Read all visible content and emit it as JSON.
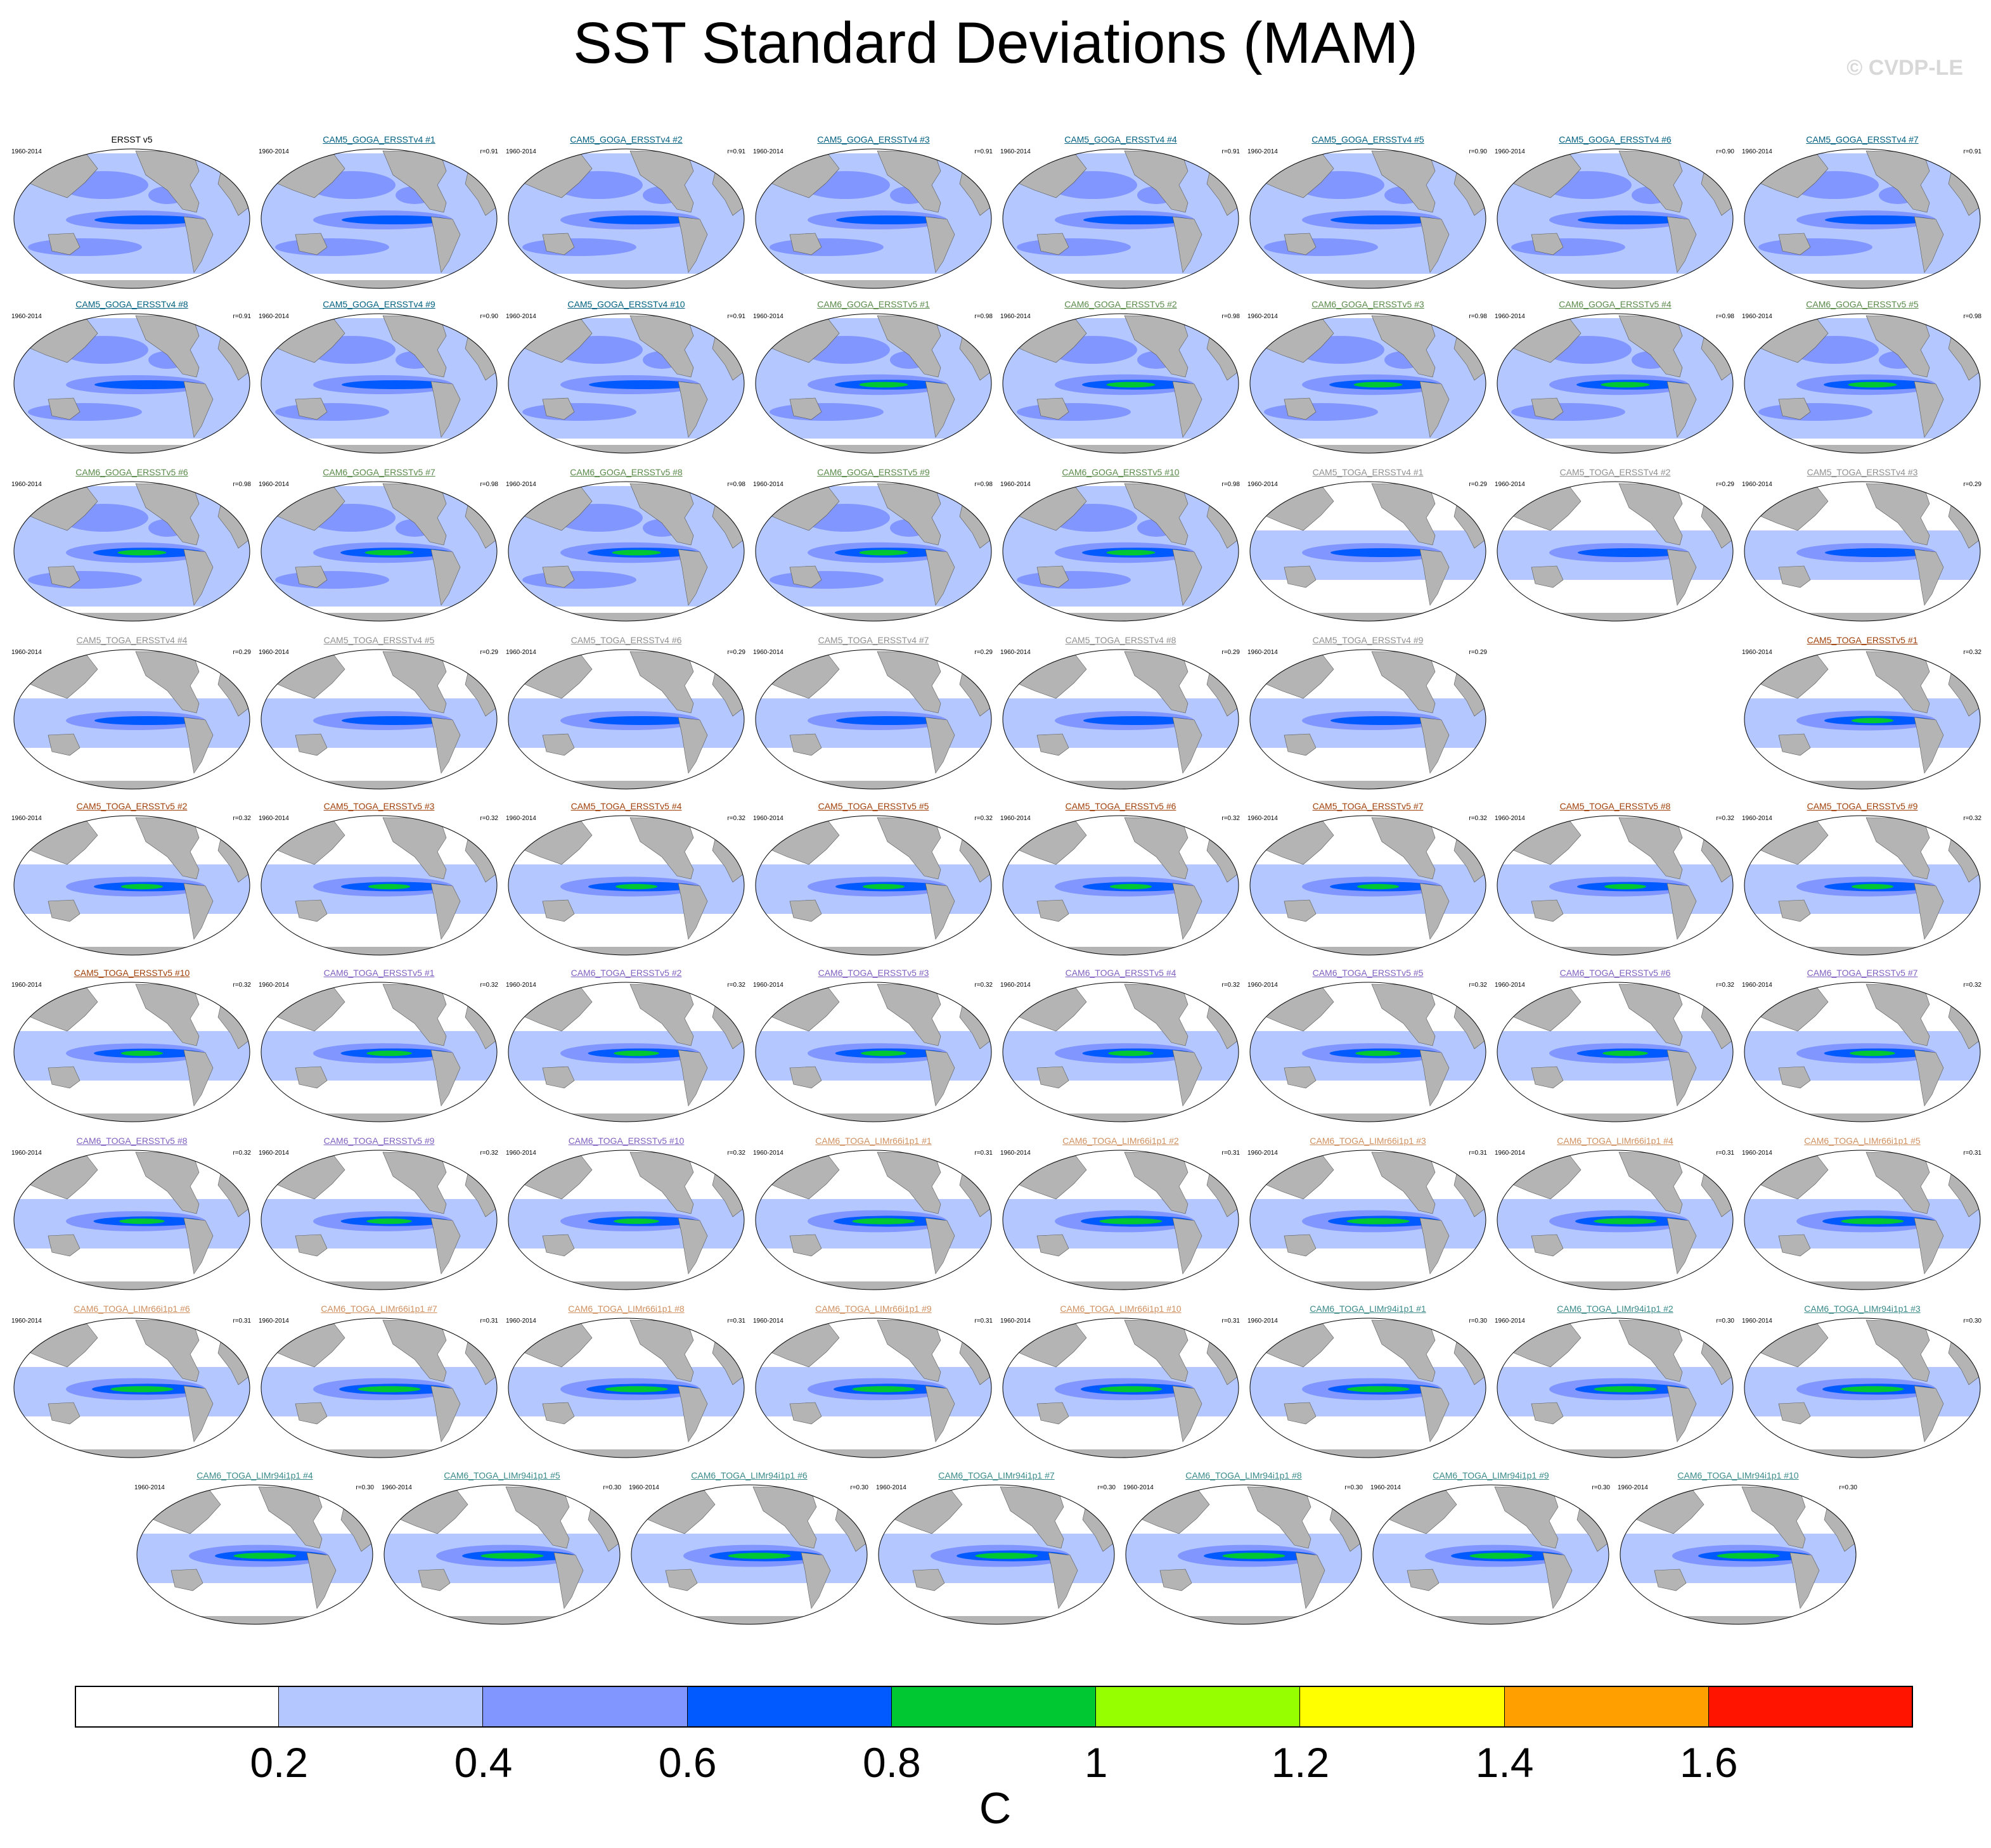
{
  "header": {
    "title": "SST Standard Deviations (MAM)",
    "watermark": "© CVDP-LE"
  },
  "colors": {
    "series": {
      "ERSST v5": "#000000",
      "CAM5_GOGA_ERSSTv4": "#006080",
      "CAM6_GOGA_ERSSTv5": "#5a8a4a",
      "CAM5_TOGA_ERSSTv4": "#909090",
      "CAM5_TOGA_ERSSTv5": "#a0400a",
      "CAM6_TOGA_ERSSTv5": "#8060c0",
      "CAM6_TOGA_LIMr66i1p1": "#d09060",
      "CAM6_TOGA_LIMr94i1p1": "#3a8a8a"
    },
    "land": "#b4b4b4",
    "ocean_masked": "#ffffff"
  },
  "chart_data": {
    "type": "heatmap",
    "title": "SST Standard Deviations (MAM)",
    "colorbar": {
      "label": "C",
      "levels": [
        0.2,
        0.4,
        0.6,
        0.8,
        1,
        1.2,
        1.4,
        1.6
      ],
      "tick_labels": [
        "0.2",
        "0.4",
        "0.6",
        "0.8",
        "1",
        "1.2",
        "1.4",
        "1.6"
      ],
      "colors": [
        "#ffffff",
        "#b4c8ff",
        "#8296ff",
        "#005aff",
        "#00c832",
        "#96ff00",
        "#ffff00",
        "#ffa000",
        "#ff1400"
      ]
    },
    "panels": [
      {
        "title": "ERSST v5",
        "series": "ERSST v5",
        "period": "1960-2014",
        "r": "",
        "domain": "global",
        "intensity": 0.5
      },
      {
        "title": "CAM5_GOGA_ERSSTv4 #1",
        "series": "CAM5_GOGA_ERSSTv4",
        "period": "1960-2014",
        "r": "r=0.91",
        "domain": "global",
        "intensity": 0.5
      },
      {
        "title": "CAM5_GOGA_ERSSTv4 #2",
        "series": "CAM5_GOGA_ERSSTv4",
        "period": "1960-2014",
        "r": "r=0.91",
        "domain": "global",
        "intensity": 0.5
      },
      {
        "title": "CAM5_GOGA_ERSSTv4 #3",
        "series": "CAM5_GOGA_ERSSTv4",
        "period": "1960-2014",
        "r": "r=0.91",
        "domain": "global",
        "intensity": 0.5
      },
      {
        "title": "CAM5_GOGA_ERSSTv4 #4",
        "series": "CAM5_GOGA_ERSSTv4",
        "period": "1960-2014",
        "r": "r=0.91",
        "domain": "global",
        "intensity": 0.5
      },
      {
        "title": "CAM5_GOGA_ERSSTv4 #5",
        "series": "CAM5_GOGA_ERSSTv4",
        "period": "1960-2014",
        "r": "r=0.90",
        "domain": "global",
        "intensity": 0.5
      },
      {
        "title": "CAM5_GOGA_ERSSTv4 #6",
        "series": "CAM5_GOGA_ERSSTv4",
        "period": "1960-2014",
        "r": "r=0.90",
        "domain": "global",
        "intensity": 0.5
      },
      {
        "title": "CAM5_GOGA_ERSSTv4 #7",
        "series": "CAM5_GOGA_ERSSTv4",
        "period": "1960-2014",
        "r": "r=0.91",
        "domain": "global",
        "intensity": 0.5
      },
      {
        "title": "CAM5_GOGA_ERSSTv4 #8",
        "series": "CAM5_GOGA_ERSSTv4",
        "period": "1960-2014",
        "r": "r=0.91",
        "domain": "global",
        "intensity": 0.5
      },
      {
        "title": "CAM5_GOGA_ERSSTv4 #9",
        "series": "CAM5_GOGA_ERSSTv4",
        "period": "1960-2014",
        "r": "r=0.90",
        "domain": "global",
        "intensity": 0.5
      },
      {
        "title": "CAM5_GOGA_ERSSTv4 #10",
        "series": "CAM5_GOGA_ERSSTv4",
        "period": "1960-2014",
        "r": "r=0.91",
        "domain": "global",
        "intensity": 0.5
      },
      {
        "title": "CAM6_GOGA_ERSSTv5 #1",
        "series": "CAM6_GOGA_ERSSTv5",
        "period": "1960-2014",
        "r": "r=0.98",
        "domain": "global",
        "intensity": 0.7
      },
      {
        "title": "CAM6_GOGA_ERSSTv5 #2",
        "series": "CAM6_GOGA_ERSSTv5",
        "period": "1960-2014",
        "r": "r=0.98",
        "domain": "global",
        "intensity": 0.7
      },
      {
        "title": "CAM6_GOGA_ERSSTv5 #3",
        "series": "CAM6_GOGA_ERSSTv5",
        "period": "1960-2014",
        "r": "r=0.98",
        "domain": "global",
        "intensity": 0.7
      },
      {
        "title": "CAM6_GOGA_ERSSTv5 #4",
        "series": "CAM6_GOGA_ERSSTv5",
        "period": "1960-2014",
        "r": "r=0.98",
        "domain": "global",
        "intensity": 0.7
      },
      {
        "title": "CAM6_GOGA_ERSSTv5 #5",
        "series": "CAM6_GOGA_ERSSTv5",
        "period": "1960-2014",
        "r": "r=0.98",
        "domain": "global",
        "intensity": 0.7
      },
      {
        "title": "CAM6_GOGA_ERSSTv5 #6",
        "series": "CAM6_GOGA_ERSSTv5",
        "period": "1960-2014",
        "r": "r=0.98",
        "domain": "global",
        "intensity": 0.7
      },
      {
        "title": "CAM6_GOGA_ERSSTv5 #7",
        "series": "CAM6_GOGA_ERSSTv5",
        "period": "1960-2014",
        "r": "r=0.98",
        "domain": "global",
        "intensity": 0.7
      },
      {
        "title": "CAM6_GOGA_ERSSTv5 #8",
        "series": "CAM6_GOGA_ERSSTv5",
        "period": "1960-2014",
        "r": "r=0.98",
        "domain": "global",
        "intensity": 0.7
      },
      {
        "title": "CAM6_GOGA_ERSSTv5 #9",
        "series": "CAM6_GOGA_ERSSTv5",
        "period": "1960-2014",
        "r": "r=0.98",
        "domain": "global",
        "intensity": 0.7
      },
      {
        "title": "CAM6_GOGA_ERSSTv5 #10",
        "series": "CAM6_GOGA_ERSSTv5",
        "period": "1960-2014",
        "r": "r=0.98",
        "domain": "global",
        "intensity": 0.7
      },
      {
        "title": "CAM5_TOGA_ERSSTv4 #1",
        "series": "CAM5_TOGA_ERSSTv4",
        "period": "1960-2014",
        "r": "r=0.29",
        "domain": "tropics",
        "intensity": 0.5
      },
      {
        "title": "CAM5_TOGA_ERSSTv4 #2",
        "series": "CAM5_TOGA_ERSSTv4",
        "period": "1960-2014",
        "r": "r=0.29",
        "domain": "tropics",
        "intensity": 0.5
      },
      {
        "title": "CAM5_TOGA_ERSSTv4 #3",
        "series": "CAM5_TOGA_ERSSTv4",
        "period": "1960-2014",
        "r": "r=0.29",
        "domain": "tropics",
        "intensity": 0.5
      },
      {
        "title": "CAM5_TOGA_ERSSTv4 #4",
        "series": "CAM5_TOGA_ERSSTv4",
        "period": "1960-2014",
        "r": "r=0.29",
        "domain": "tropics",
        "intensity": 0.5
      },
      {
        "title": "CAM5_TOGA_ERSSTv4 #5",
        "series": "CAM5_TOGA_ERSSTv4",
        "period": "1960-2014",
        "r": "r=0.29",
        "domain": "tropics",
        "intensity": 0.5
      },
      {
        "title": "CAM5_TOGA_ERSSTv4 #6",
        "series": "CAM5_TOGA_ERSSTv4",
        "period": "1960-2014",
        "r": "r=0.29",
        "domain": "tropics",
        "intensity": 0.5
      },
      {
        "title": "CAM5_TOGA_ERSSTv4 #7",
        "series": "CAM5_TOGA_ERSSTv4",
        "period": "1960-2014",
        "r": "r=0.29",
        "domain": "tropics",
        "intensity": 0.5
      },
      {
        "title": "CAM5_TOGA_ERSSTv4 #8",
        "series": "CAM5_TOGA_ERSSTv4",
        "period": "1960-2014",
        "r": "r=0.29",
        "domain": "tropics",
        "intensity": 0.5
      },
      {
        "title": "CAM5_TOGA_ERSSTv4 #9",
        "series": "CAM5_TOGA_ERSSTv4",
        "period": "1960-2014",
        "r": "r=0.29",
        "domain": "tropics",
        "intensity": 0.5
      },
      {
        "title": "CAM5_TOGA_ERSSTv5 #1",
        "series": "CAM5_TOGA_ERSSTv5",
        "period": "1960-2014",
        "r": "r=0.32",
        "domain": "tropics",
        "intensity": 0.6
      },
      {
        "title": "CAM5_TOGA_ERSSTv5 #2",
        "series": "CAM5_TOGA_ERSSTv5",
        "period": "1960-2014",
        "r": "r=0.32",
        "domain": "tropics",
        "intensity": 0.6
      },
      {
        "title": "CAM5_TOGA_ERSSTv5 #3",
        "series": "CAM5_TOGA_ERSSTv5",
        "period": "1960-2014",
        "r": "r=0.32",
        "domain": "tropics",
        "intensity": 0.6
      },
      {
        "title": "CAM5_TOGA_ERSSTv5 #4",
        "series": "CAM5_TOGA_ERSSTv5",
        "period": "1960-2014",
        "r": "r=0.32",
        "domain": "tropics",
        "intensity": 0.6
      },
      {
        "title": "CAM5_TOGA_ERSSTv5 #5",
        "series": "CAM5_TOGA_ERSSTv5",
        "period": "1960-2014",
        "r": "r=0.32",
        "domain": "tropics",
        "intensity": 0.6
      },
      {
        "title": "CAM5_TOGA_ERSSTv5 #6",
        "series": "CAM5_TOGA_ERSSTv5",
        "period": "1960-2014",
        "r": "r=0.32",
        "domain": "tropics",
        "intensity": 0.6
      },
      {
        "title": "CAM5_TOGA_ERSSTv5 #7",
        "series": "CAM5_TOGA_ERSSTv5",
        "period": "1960-2014",
        "r": "r=0.32",
        "domain": "tropics",
        "intensity": 0.6
      },
      {
        "title": "CAM5_TOGA_ERSSTv5 #8",
        "series": "CAM5_TOGA_ERSSTv5",
        "period": "1960-2014",
        "r": "r=0.32",
        "domain": "tropics",
        "intensity": 0.6
      },
      {
        "title": "CAM5_TOGA_ERSSTv5 #9",
        "series": "CAM5_TOGA_ERSSTv5",
        "period": "1960-2014",
        "r": "r=0.32",
        "domain": "tropics",
        "intensity": 0.6
      },
      {
        "title": "CAM5_TOGA_ERSSTv5 #10",
        "series": "CAM5_TOGA_ERSSTv5",
        "period": "1960-2014",
        "r": "r=0.32",
        "domain": "tropics",
        "intensity": 0.6
      },
      {
        "title": "CAM6_TOGA_ERSSTv5 #1",
        "series": "CAM6_TOGA_ERSSTv5",
        "period": "1960-2014",
        "r": "r=0.32",
        "domain": "tropics",
        "intensity": 0.65
      },
      {
        "title": "CAM6_TOGA_ERSSTv5 #2",
        "series": "CAM6_TOGA_ERSSTv5",
        "period": "1960-2014",
        "r": "r=0.32",
        "domain": "tropics",
        "intensity": 0.65
      },
      {
        "title": "CAM6_TOGA_ERSSTv5 #3",
        "series": "CAM6_TOGA_ERSSTv5",
        "period": "1960-2014",
        "r": "r=0.32",
        "domain": "tropics",
        "intensity": 0.65
      },
      {
        "title": "CAM6_TOGA_ERSSTv5 #4",
        "series": "CAM6_TOGA_ERSSTv5",
        "period": "1960-2014",
        "r": "r=0.32",
        "domain": "tropics",
        "intensity": 0.65
      },
      {
        "title": "CAM6_TOGA_ERSSTv5 #5",
        "series": "CAM6_TOGA_ERSSTv5",
        "period": "1960-2014",
        "r": "r=0.32",
        "domain": "tropics",
        "intensity": 0.65
      },
      {
        "title": "CAM6_TOGA_ERSSTv5 #6",
        "series": "CAM6_TOGA_ERSSTv5",
        "period": "1960-2014",
        "r": "r=0.32",
        "domain": "tropics",
        "intensity": 0.65
      },
      {
        "title": "CAM6_TOGA_ERSSTv5 #7",
        "series": "CAM6_TOGA_ERSSTv5",
        "period": "1960-2014",
        "r": "r=0.32",
        "domain": "tropics",
        "intensity": 0.65
      },
      {
        "title": "CAM6_TOGA_ERSSTv5 #8",
        "series": "CAM6_TOGA_ERSSTv5",
        "period": "1960-2014",
        "r": "r=0.32",
        "domain": "tropics",
        "intensity": 0.65
      },
      {
        "title": "CAM6_TOGA_ERSSTv5 #9",
        "series": "CAM6_TOGA_ERSSTv5",
        "period": "1960-2014",
        "r": "r=0.32",
        "domain": "tropics",
        "intensity": 0.65
      },
      {
        "title": "CAM6_TOGA_ERSSTv5 #10",
        "series": "CAM6_TOGA_ERSSTv5",
        "period": "1960-2014",
        "r": "r=0.32",
        "domain": "tropics",
        "intensity": 0.65
      },
      {
        "title": "CAM6_TOGA_LIMr66i1p1 #1",
        "series": "CAM6_TOGA_LIMr66i1p1",
        "period": "1960-2014",
        "r": "r=0.31",
        "domain": "tropics",
        "intensity": 0.9
      },
      {
        "title": "CAM6_TOGA_LIMr66i1p1 #2",
        "series": "CAM6_TOGA_LIMr66i1p1",
        "period": "1960-2014",
        "r": "r=0.31",
        "domain": "tropics",
        "intensity": 0.9
      },
      {
        "title": "CAM6_TOGA_LIMr66i1p1 #3",
        "series": "CAM6_TOGA_LIMr66i1p1",
        "period": "1960-2014",
        "r": "r=0.31",
        "domain": "tropics",
        "intensity": 0.9
      },
      {
        "title": "CAM6_TOGA_LIMr66i1p1 #4",
        "series": "CAM6_TOGA_LIMr66i1p1",
        "period": "1960-2014",
        "r": "r=0.31",
        "domain": "tropics",
        "intensity": 0.9
      },
      {
        "title": "CAM6_TOGA_LIMr66i1p1 #5",
        "series": "CAM6_TOGA_LIMr66i1p1",
        "period": "1960-2014",
        "r": "r=0.31",
        "domain": "tropics",
        "intensity": 0.9
      },
      {
        "title": "CAM6_TOGA_LIMr66i1p1 #6",
        "series": "CAM6_TOGA_LIMr66i1p1",
        "period": "1960-2014",
        "r": "r=0.31",
        "domain": "tropics",
        "intensity": 0.9
      },
      {
        "title": "CAM6_TOGA_LIMr66i1p1 #7",
        "series": "CAM6_TOGA_LIMr66i1p1",
        "period": "1960-2014",
        "r": "r=0.31",
        "domain": "tropics",
        "intensity": 0.9
      },
      {
        "title": "CAM6_TOGA_LIMr66i1p1 #8",
        "series": "CAM6_TOGA_LIMr66i1p1",
        "period": "1960-2014",
        "r": "r=0.31",
        "domain": "tropics",
        "intensity": 0.9
      },
      {
        "title": "CAM6_TOGA_LIMr66i1p1 #9",
        "series": "CAM6_TOGA_LIMr66i1p1",
        "period": "1960-2014",
        "r": "r=0.31",
        "domain": "tropics",
        "intensity": 0.9
      },
      {
        "title": "CAM6_TOGA_LIMr66i1p1 #10",
        "series": "CAM6_TOGA_LIMr66i1p1",
        "period": "1960-2014",
        "r": "r=0.31",
        "domain": "tropics",
        "intensity": 0.9
      },
      {
        "title": "CAM6_TOGA_LIMr94i1p1 #1",
        "series": "CAM6_TOGA_LIMr94i1p1",
        "period": "1960-2014",
        "r": "r=0.30",
        "domain": "tropics",
        "intensity": 0.9
      },
      {
        "title": "CAM6_TOGA_LIMr94i1p1 #2",
        "series": "CAM6_TOGA_LIMr94i1p1",
        "period": "1960-2014",
        "r": "r=0.30",
        "domain": "tropics",
        "intensity": 0.9
      },
      {
        "title": "CAM6_TOGA_LIMr94i1p1 #3",
        "series": "CAM6_TOGA_LIMr94i1p1",
        "period": "1960-2014",
        "r": "r=0.30",
        "domain": "tropics",
        "intensity": 0.9
      },
      {
        "title": "CAM6_TOGA_LIMr94i1p1 #4",
        "series": "CAM6_TOGA_LIMr94i1p1",
        "period": "1960-2014",
        "r": "r=0.30",
        "domain": "tropics",
        "intensity": 0.9
      },
      {
        "title": "CAM6_TOGA_LIMr94i1p1 #5",
        "series": "CAM6_TOGA_LIMr94i1p1",
        "period": "1960-2014",
        "r": "r=0.30",
        "domain": "tropics",
        "intensity": 0.9
      },
      {
        "title": "CAM6_TOGA_LIMr94i1p1 #6",
        "series": "CAM6_TOGA_LIMr94i1p1",
        "period": "1960-2014",
        "r": "r=0.30",
        "domain": "tropics",
        "intensity": 0.9
      },
      {
        "title": "CAM6_TOGA_LIMr94i1p1 #7",
        "series": "CAM6_TOGA_LIMr94i1p1",
        "period": "1960-2014",
        "r": "r=0.30",
        "domain": "tropics",
        "intensity": 0.9
      },
      {
        "title": "CAM6_TOGA_LIMr94i1p1 #8",
        "series": "CAM6_TOGA_LIMr94i1p1",
        "period": "1960-2014",
        "r": "r=0.30",
        "domain": "tropics",
        "intensity": 0.9
      },
      {
        "title": "CAM6_TOGA_LIMr94i1p1 #9",
        "series": "CAM6_TOGA_LIMr94i1p1",
        "period": "1960-2014",
        "r": "r=0.30",
        "domain": "tropics",
        "intensity": 0.9
      },
      {
        "title": "CAM6_TOGA_LIMr94i1p1 #10",
        "series": "CAM6_TOGA_LIMr94i1p1",
        "period": "1960-2014",
        "r": "r=0.30",
        "domain": "tropics",
        "intensity": 0.9
      }
    ]
  }
}
